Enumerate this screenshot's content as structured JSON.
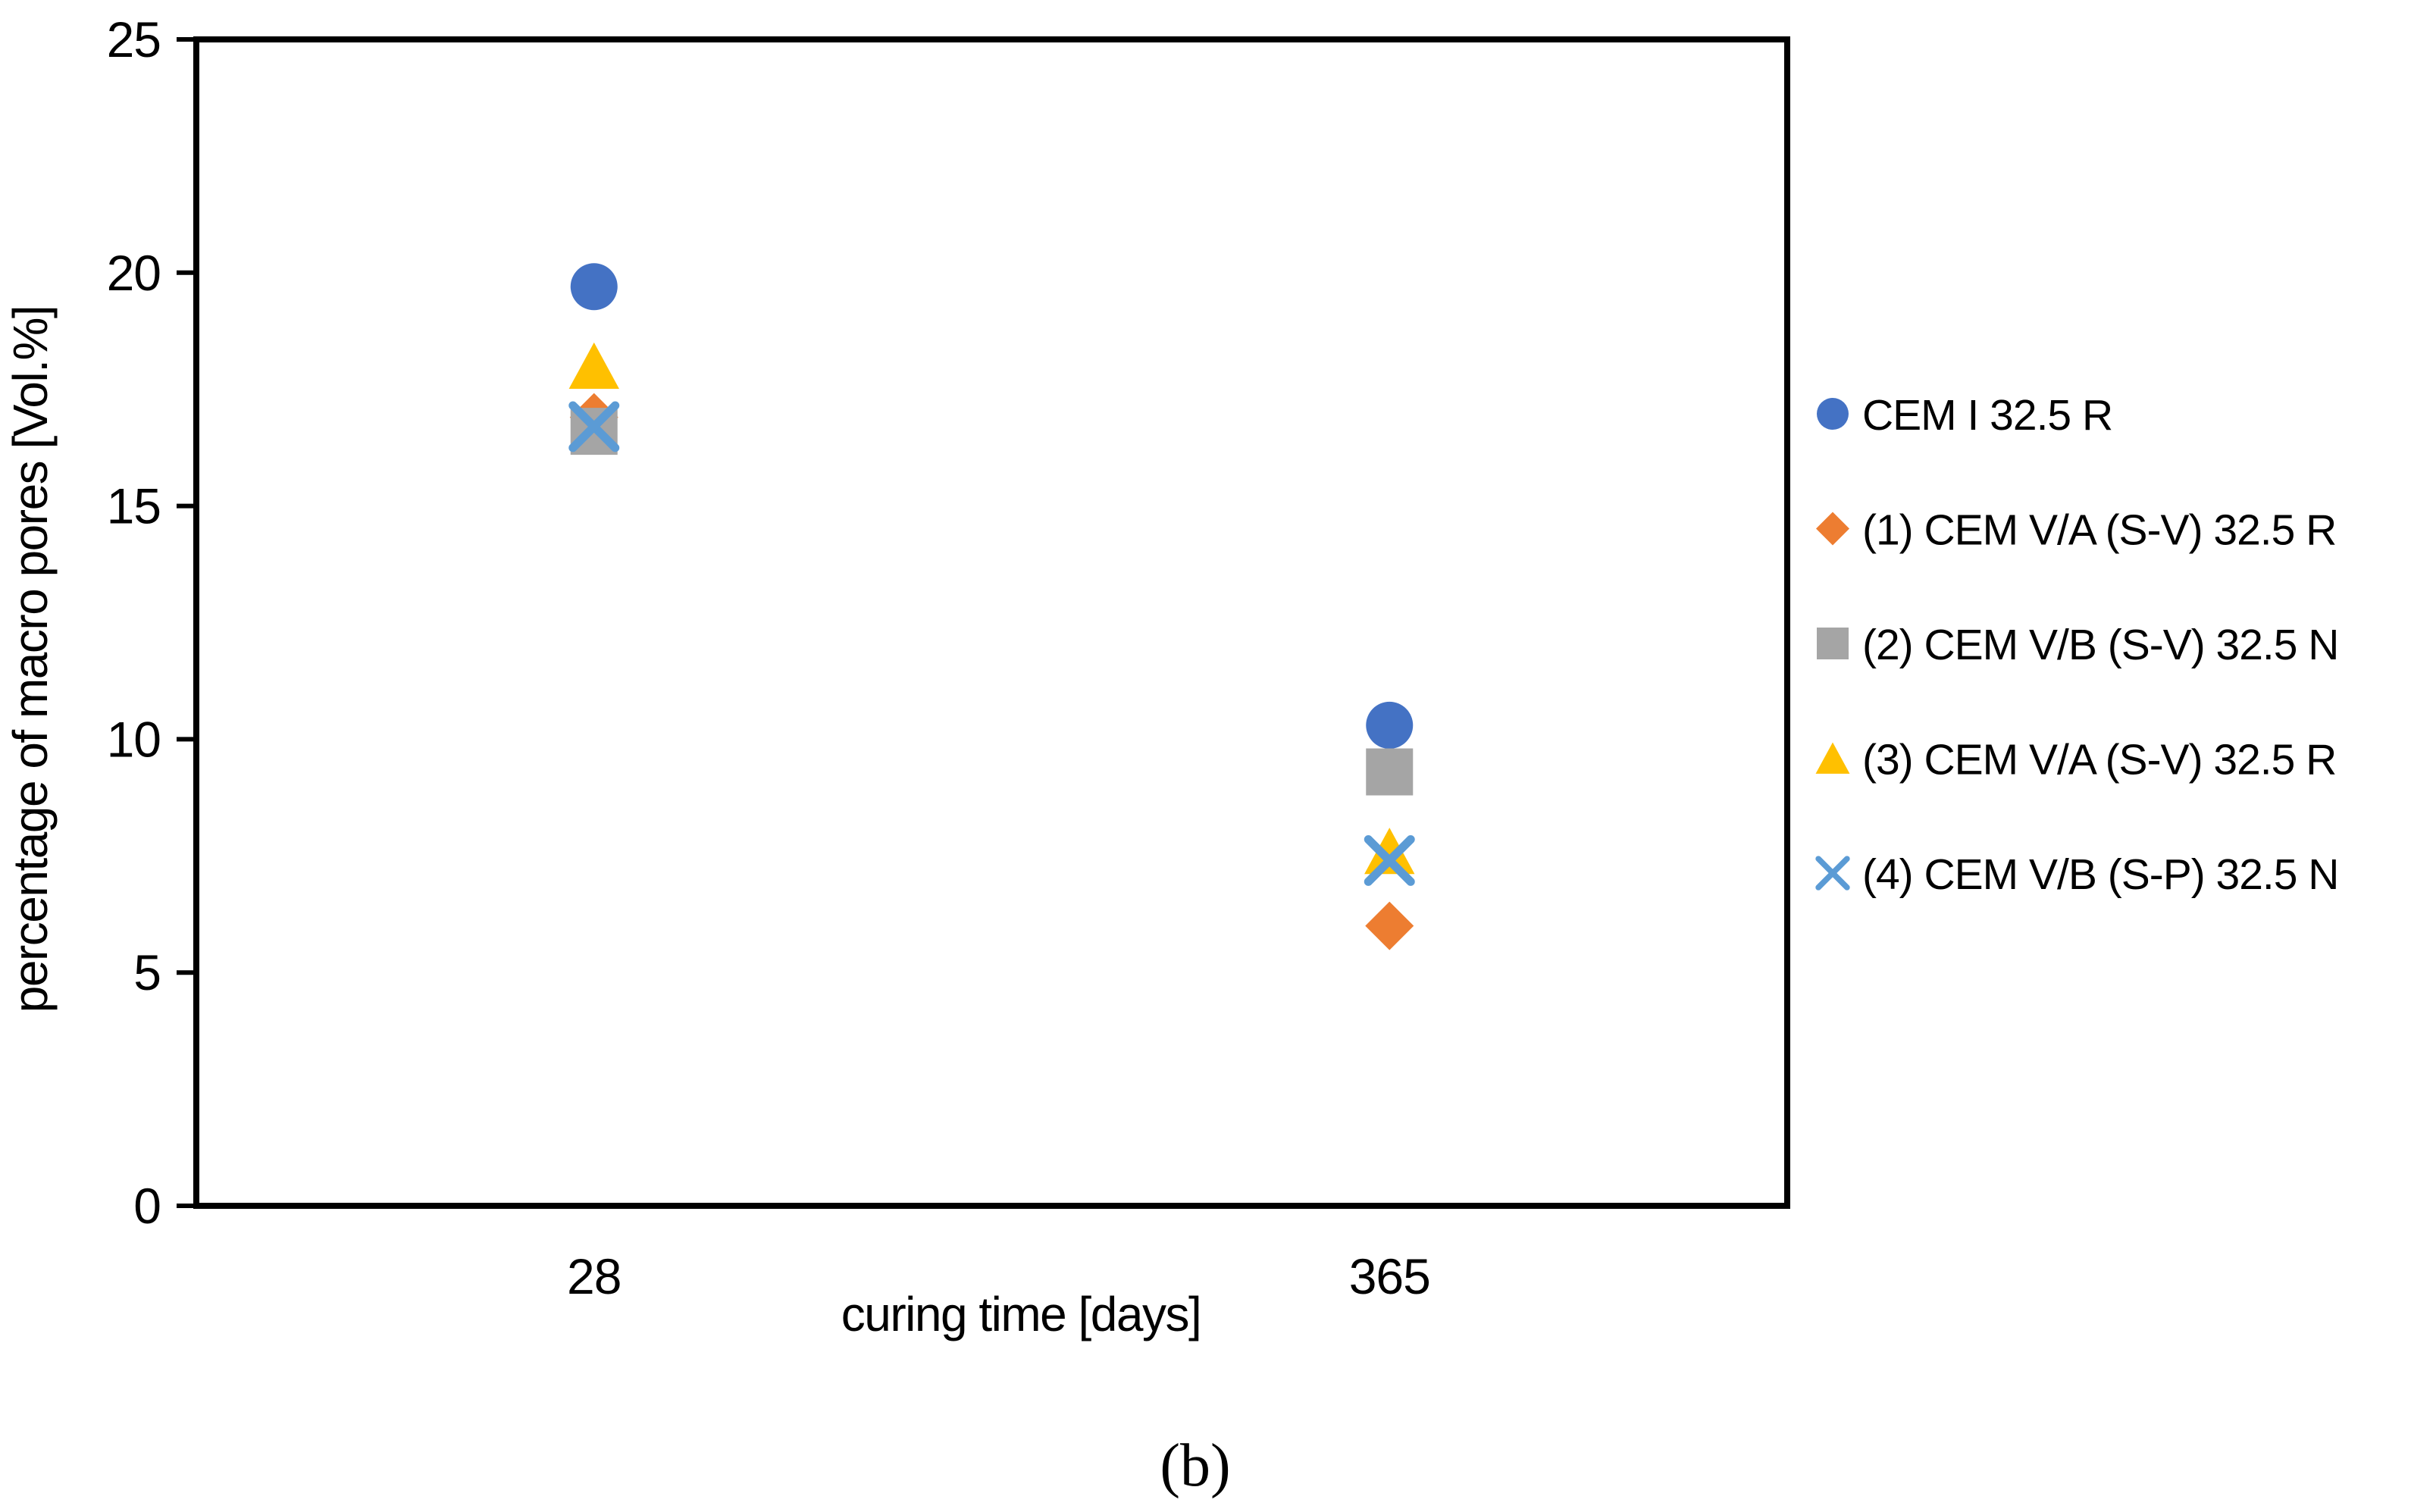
{
  "chart_data": {
    "type": "scatter",
    "title": "",
    "xlabel": "curing time [days]",
    "ylabel": "percentage of macro pores [Vol.%]",
    "caption": "(b)",
    "categories": [
      "28",
      "365"
    ],
    "ylim": [
      0,
      25
    ],
    "yticks": [
      25,
      20,
      15,
      10,
      5,
      0
    ],
    "grid": false,
    "legend_position": "right",
    "axis_color": "#000000",
    "background_color": "#ffffff",
    "series": [
      {
        "name": "CEM I 32.5 R",
        "marker": "circle",
        "color": "#4472C4",
        "values": [
          19.7,
          10.3
        ]
      },
      {
        "name": "(1) CEM V/A (S-V) 32.5 R",
        "marker": "diamond",
        "color": "#ED7D31",
        "values": [
          16.9,
          6.0
        ]
      },
      {
        "name": "(2) CEM V/B (S-V) 32.5 N",
        "marker": "square",
        "color": "#A5A5A5",
        "values": [
          16.6,
          9.3
        ]
      },
      {
        "name": "(3) CEM V/A (S-V) 32.5 R",
        "marker": "triangle",
        "color": "#FFC000",
        "values": [
          18.0,
          7.6
        ]
      },
      {
        "name": "(4) CEM V/B (S-P) 32.5 N",
        "marker": "x",
        "color": "#5B9BD5",
        "values": [
          16.7,
          7.4
        ]
      }
    ]
  }
}
